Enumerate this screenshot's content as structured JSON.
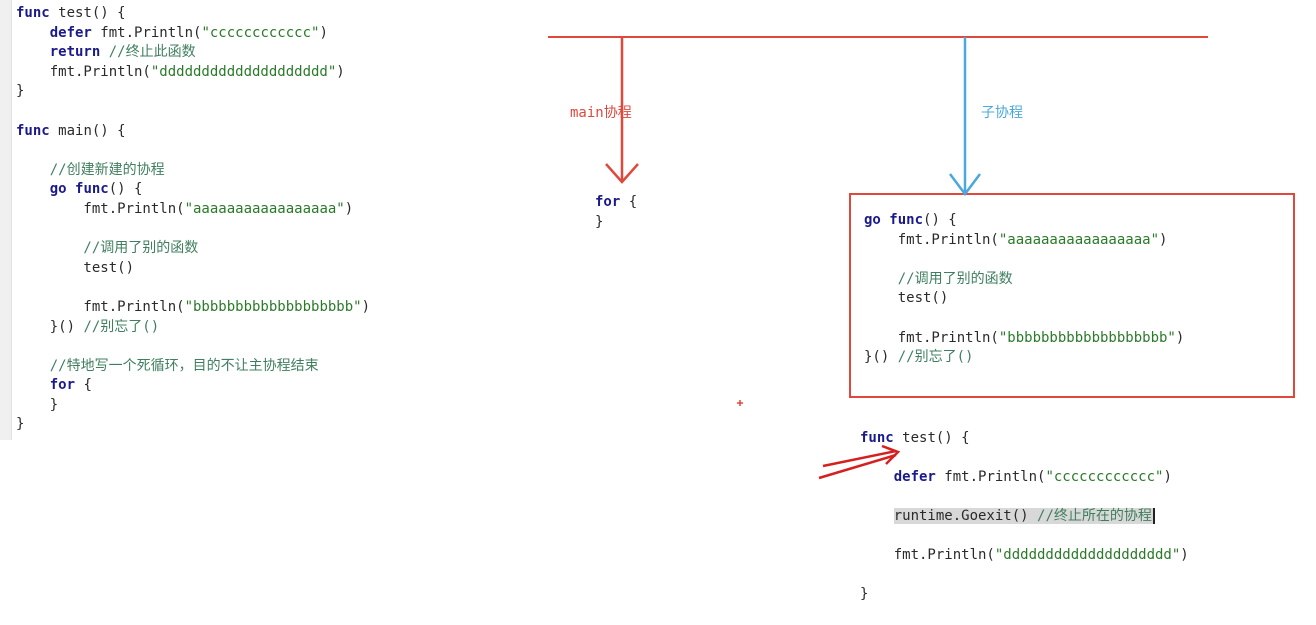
{
  "left_code": {
    "lines": [
      [
        {
          "t": "func ",
          "c": "kw"
        },
        {
          "t": "test() {",
          "c": "plain"
        }
      ],
      [
        {
          "t": "    defer ",
          "c": "kw"
        },
        {
          "t": "fmt.Println(",
          "c": "plain"
        },
        {
          "t": "\"cccccccccccc\"",
          "c": "str"
        },
        {
          "t": ")",
          "c": "plain"
        }
      ],
      [
        {
          "t": "    return ",
          "c": "kw"
        },
        {
          "t": "//终止此函数",
          "c": "cm"
        }
      ],
      [
        {
          "t": "    fmt.Println(",
          "c": "plain"
        },
        {
          "t": "\"dddddddddddddddddddd\"",
          "c": "str"
        },
        {
          "t": ")",
          "c": "plain"
        }
      ],
      [
        {
          "t": "}",
          "c": "plain"
        }
      ],
      [],
      [
        {
          "t": "func ",
          "c": "kw"
        },
        {
          "t": "main() {",
          "c": "plain"
        }
      ],
      [],
      [
        {
          "t": "    //创建新建的协程",
          "c": "cm"
        }
      ],
      [
        {
          "t": "    go ",
          "c": "kw"
        },
        {
          "t": "func",
          "c": "kw"
        },
        {
          "t": "() {",
          "c": "plain"
        }
      ],
      [
        {
          "t": "        fmt.Println(",
          "c": "plain"
        },
        {
          "t": "\"aaaaaaaaaaaaaaaaa\"",
          "c": "str"
        },
        {
          "t": ")",
          "c": "plain"
        }
      ],
      [],
      [
        {
          "t": "        //调用了别的函数",
          "c": "cm"
        }
      ],
      [
        {
          "t": "        test()",
          "c": "plain"
        }
      ],
      [],
      [
        {
          "t": "        fmt.Println(",
          "c": "plain"
        },
        {
          "t": "\"bbbbbbbbbbbbbbbbbbb\"",
          "c": "str"
        },
        {
          "t": ")",
          "c": "plain"
        }
      ],
      [
        {
          "t": "    }() ",
          "c": "plain"
        },
        {
          "t": "//别忘了()",
          "c": "cm"
        }
      ],
      [],
      [
        {
          "t": "    //特地写一个死循环，目的不让主协程结束",
          "c": "cm"
        }
      ],
      [
        {
          "t": "    for ",
          "c": "kw"
        },
        {
          "t": "{",
          "c": "plain"
        }
      ],
      [
        {
          "t": "    }",
          "c": "plain"
        }
      ],
      [
        {
          "t": "}",
          "c": "plain"
        }
      ]
    ]
  },
  "labels": {
    "main_label": "main协程",
    "sub_label": "子协程"
  },
  "mid_code": {
    "lines": [
      [
        {
          "t": "for ",
          "c": "kw"
        },
        {
          "t": "{",
          "c": "plain"
        }
      ],
      [
        {
          "t": "}",
          "c": "plain"
        }
      ]
    ]
  },
  "box_code": {
    "lines": [
      [
        {
          "t": "go ",
          "c": "kw"
        },
        {
          "t": "func",
          "c": "kw"
        },
        {
          "t": "() {",
          "c": "plain"
        }
      ],
      [
        {
          "t": "    fmt.Println(",
          "c": "plain"
        },
        {
          "t": "\"aaaaaaaaaaaaaaaaa\"",
          "c": "str"
        },
        {
          "t": ")",
          "c": "plain"
        }
      ],
      [],
      [
        {
          "t": "    //调用了别的函数",
          "c": "cm"
        }
      ],
      [
        {
          "t": "    test()",
          "c": "plain"
        }
      ],
      [],
      [
        {
          "t": "    fmt.Println(",
          "c": "plain"
        },
        {
          "t": "\"bbbbbbbbbbbbbbbbbbb\"",
          "c": "str"
        },
        {
          "t": ")",
          "c": "plain"
        }
      ],
      [
        {
          "t": "}() ",
          "c": "plain"
        },
        {
          "t": "//别忘了()",
          "c": "cm"
        }
      ]
    ]
  },
  "bottom_code": {
    "line1_kw": "func ",
    "line1": "test() {",
    "line2_kw": "    defer ",
    "line2_a": "fmt.Println(",
    "line2_s": "\"cccccccccccc\"",
    "line2_b": ")",
    "line3_indent": "    ",
    "line3_code": "runtime.Goexit() ",
    "line3_cm": "//终止所在的协程",
    "line4_a": "    fmt.Println(",
    "line4_s": "\"dddddddddddddddddddd\"",
    "line4_b": ")",
    "line5": "}"
  },
  "colors": {
    "red_line": "#e0483c",
    "blue_arrow": "#4aa8dc",
    "main_label": "#e0483c",
    "sub_label": "#4aa8dc",
    "keyword": "#1a1a8a",
    "string": "#2a7a2a",
    "comment": "#3f7f5f"
  }
}
